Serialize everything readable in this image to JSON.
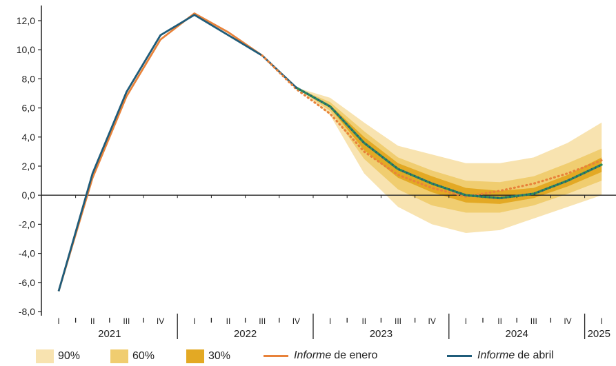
{
  "chart_data": {
    "type": "line",
    "xlabel": "",
    "ylabel": "",
    "ylim": [
      -8.0,
      12.0
    ],
    "y_ticks": [
      "12,0",
      "10,0",
      "8,0",
      "6,0",
      "4,0",
      "2,0",
      "0,0",
      "-2,0",
      "-4,0",
      "-6,0",
      "-8,0"
    ],
    "quarter_labels": [
      "I",
      "II",
      "III",
      "IV",
      "I",
      "II",
      "III",
      "IV",
      "I",
      "II",
      "III",
      "IV",
      "I",
      "II",
      "III",
      "IV",
      "I"
    ],
    "year_labels": [
      "2021",
      "2022",
      "2023",
      "2024",
      "2025"
    ],
    "x_periods": [
      "2021-I",
      "2021-II",
      "2021-III",
      "2021-IV",
      "2022-I",
      "2022-II",
      "2022-III",
      "2022-IV",
      "2023-I",
      "2023-II",
      "2023-III",
      "2023-IV",
      "2024-I",
      "2024-II",
      "2024-III",
      "2024-IV",
      "2025-I"
    ],
    "series": [
      {
        "name": "Informe de enero",
        "color": "#E8823A",
        "observed": [
          -6.6,
          1.2,
          6.8,
          10.7,
          12.5,
          11.2,
          9.6
        ],
        "projection_start": "2022-III",
        "projection": [
          9.6,
          7.3,
          5.6,
          3.0,
          1.4,
          0.5,
          -0.1,
          0.3,
          0.8,
          1.5,
          2.4
        ]
      },
      {
        "name": "Informe de abril",
        "color": "#1F5C7A",
        "observed": [
          -6.6,
          1.5,
          7.1,
          11.0,
          12.4,
          11.0,
          9.6,
          7.4
        ],
        "projection_start": "2022-IV",
        "projection": [
          7.4,
          6.1,
          3.6,
          1.8,
          0.8,
          0.0,
          -0.2,
          0.1,
          1.0,
          2.1
        ],
        "projection_color": "#2E8B57"
      }
    ],
    "fan_chart": {
      "periods": [
        "2022-IV",
        "2023-I",
        "2023-II",
        "2023-III",
        "2023-IV",
        "2024-I",
        "2024-II",
        "2024-III",
        "2024-IV",
        "2025-I"
      ],
      "central": [
        7.4,
        6.1,
        3.6,
        1.8,
        0.8,
        0.0,
        -0.2,
        0.1,
        1.0,
        2.1
      ],
      "bands": [
        {
          "name": "90%",
          "color": "#F8E3B0",
          "lower": [
            7.4,
            5.5,
            1.5,
            -0.8,
            -2.0,
            -2.6,
            -2.4,
            -1.6,
            -0.8,
            0.0
          ],
          "upper": [
            7.4,
            6.7,
            5.0,
            3.4,
            2.8,
            2.2,
            2.2,
            2.6,
            3.6,
            5.0
          ]
        },
        {
          "name": "60%",
          "color": "#F0CD70",
          "lower": [
            7.4,
            5.8,
            2.5,
            0.4,
            -0.7,
            -1.2,
            -1.2,
            -0.7,
            0.1,
            1.0
          ],
          "upper": [
            7.4,
            6.4,
            4.4,
            2.6,
            1.7,
            1.0,
            0.9,
            1.3,
            2.2,
            3.2
          ]
        },
        {
          "name": "30%",
          "color": "#E3A924",
          "lower": [
            7.4,
            6.0,
            3.1,
            1.2,
            0.2,
            -0.5,
            -0.6,
            -0.2,
            0.6,
            1.6
          ],
          "upper": [
            7.4,
            6.2,
            4.0,
            2.2,
            1.3,
            0.5,
            0.3,
            0.5,
            1.4,
            2.6
          ]
        }
      ]
    },
    "legend": [
      {
        "label": "90%",
        "kind": "band",
        "color": "#F8E3B0"
      },
      {
        "label": "60%",
        "kind": "band",
        "color": "#F0CD70"
      },
      {
        "label": "30%",
        "kind": "band",
        "color": "#E3A924"
      },
      {
        "label_italic": "Informe",
        "label_rest": "de enero",
        "kind": "line",
        "color": "#E8823A"
      },
      {
        "label_italic": "Informe",
        "label_rest": "de abril",
        "kind": "line",
        "color": "#1F5C7A"
      }
    ],
    "grid": false,
    "legend_placement": "bottom"
  }
}
